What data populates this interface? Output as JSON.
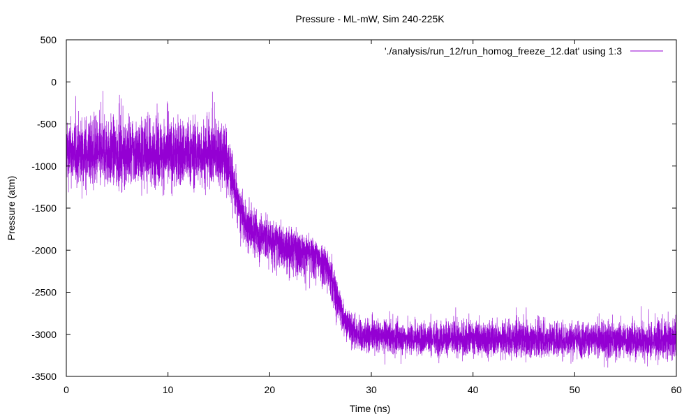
{
  "chart_data": {
    "type": "line",
    "title": "Pressure - ML-mW, Sim 240-225K",
    "xlabel": "Time (ns)",
    "ylabel": "Pressure (atm)",
    "xlim": [
      0,
      60
    ],
    "ylim": [
      -3500,
      500
    ],
    "x_ticks": [
      0,
      10,
      20,
      30,
      40,
      50,
      60
    ],
    "y_ticks": [
      500,
      0,
      -500,
      -1000,
      -1500,
      -2000,
      -2500,
      -3000,
      -3500
    ],
    "grid": false,
    "legend_position": "top-right",
    "series": [
      {
        "name": "'./analysis/run_12/run_homog_freeze_12.dat' using 1:3",
        "color": "#9400d3",
        "x": [
          0,
          2,
          5,
          8,
          10,
          12,
          14,
          15.5,
          16.2,
          17,
          17.8,
          19,
          20.5,
          22,
          24,
          25.5,
          26.5,
          27.2,
          28,
          29,
          30,
          33,
          36,
          40,
          45,
          50,
          55,
          60
        ],
        "y_mid": [
          -850,
          -870,
          -860,
          -850,
          -870,
          -860,
          -860,
          -880,
          -1100,
          -1500,
          -1720,
          -1800,
          -1900,
          -1950,
          -2000,
          -2130,
          -2480,
          -2750,
          -2960,
          -3040,
          -3020,
          -3050,
          -3050,
          -3050,
          -3060,
          -3060,
          -3070,
          -3090
        ],
        "y_low": [
          -1450,
          -1500,
          -1500,
          -1450,
          -1550,
          -1500,
          -1450,
          -1500,
          -1700,
          -1950,
          -2200,
          -2350,
          -2450,
          -2500,
          -2600,
          -2700,
          -3000,
          -3150,
          -3250,
          -3330,
          -3330,
          -3350,
          -3380,
          -3400,
          -3400,
          -3420,
          -3420,
          -3400
        ],
        "y_high": [
          -200,
          -100,
          -150,
          -150,
          -150,
          -150,
          -150,
          -100,
          -550,
          -1100,
          -1300,
          -1350,
          -1500,
          -1600,
          -1750,
          -1800,
          -2150,
          -2450,
          -2600,
          -2650,
          -2700,
          -2700,
          -2700,
          -2700,
          -2700,
          -2700,
          -2700,
          -2650
        ]
      }
    ]
  }
}
